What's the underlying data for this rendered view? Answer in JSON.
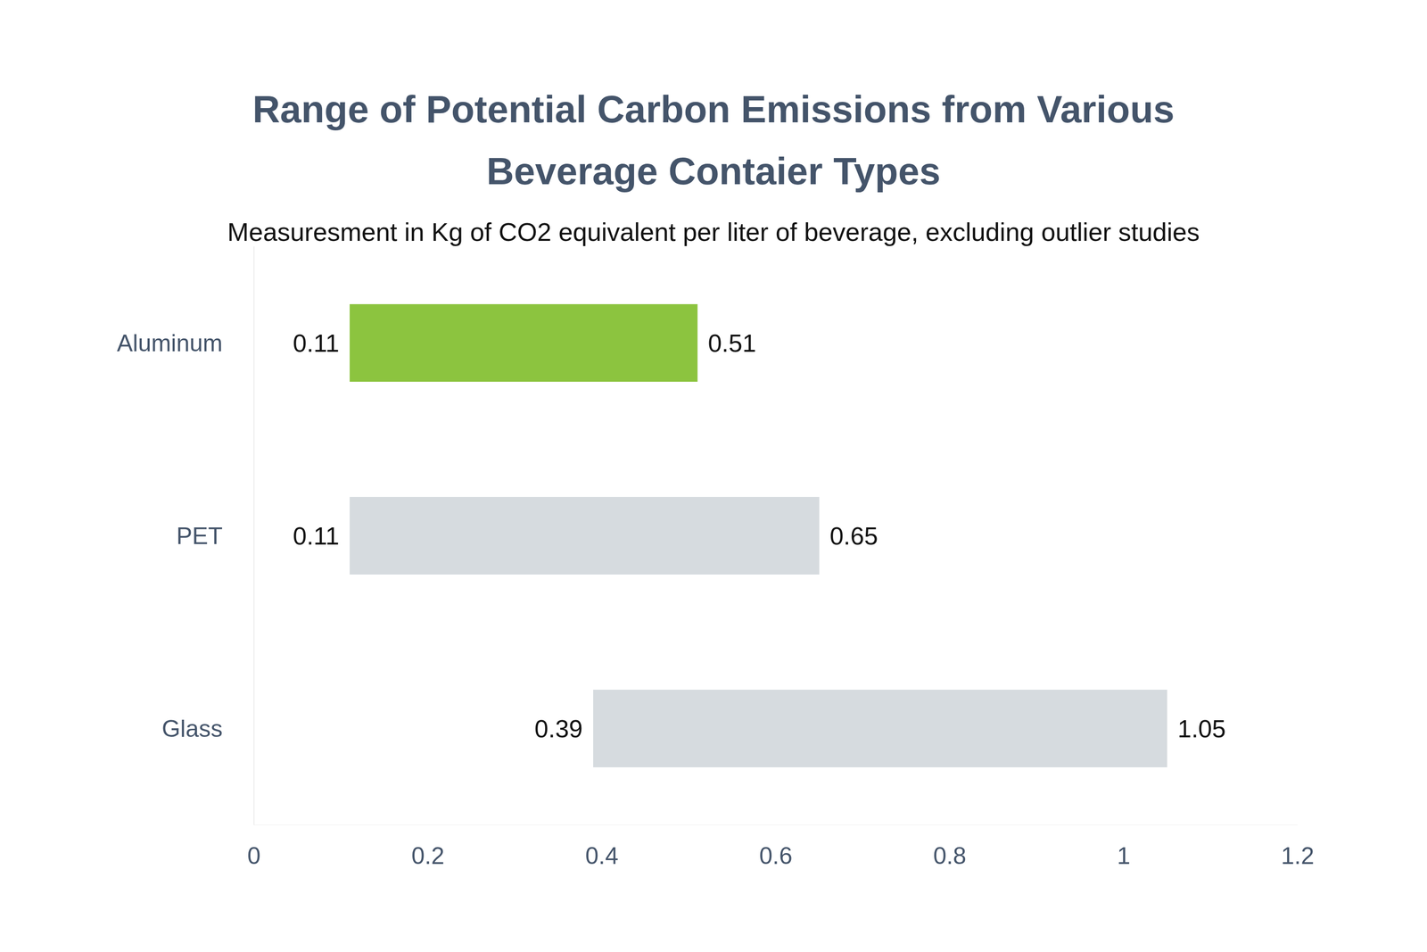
{
  "chart_data": {
    "type": "bar",
    "orientation": "horizontal",
    "title": "Range of Potential Carbon Emissions from Various Beverage Contaier Types",
    "subtitle": "Measuresment in Kg of CO2 equivalent per liter of beverage, excluding outlier studies",
    "categories": [
      "Aluminum",
      "PET",
      "Glass"
    ],
    "values": [
      [
        0.11,
        0.51
      ],
      [
        0.11,
        0.65
      ],
      [
        0.39,
        1.05
      ]
    ],
    "colors": [
      "#8cc43f",
      "#d6dbdf",
      "#d6dbdf"
    ],
    "xlim": [
      0,
      1.2
    ],
    "xticks": [
      0,
      0.2,
      0.4,
      0.6,
      0.8,
      1,
      1.2
    ],
    "grid": false,
    "data_labels": true
  }
}
